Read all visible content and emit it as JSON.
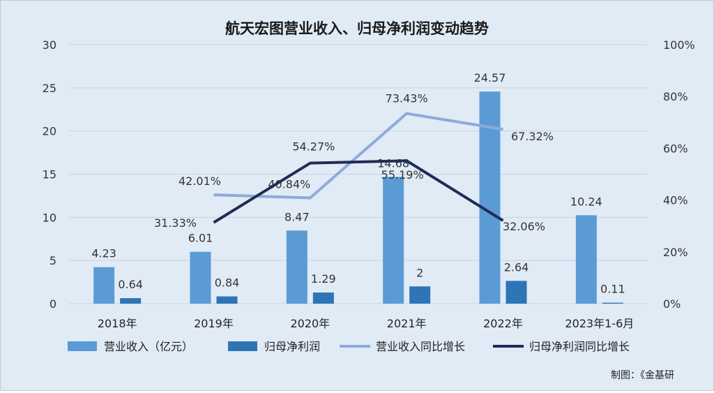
{
  "chart_data": {
    "type": "bar",
    "title": "航天宏图营业收入、归母净利润变动趋势",
    "categories": [
      "2018年",
      "2019年",
      "2020年",
      "2021年",
      "2022年",
      "2023年1-6月"
    ],
    "bar_series": [
      {
        "name": "营业收入（亿元）",
        "color": "#5b9bd5",
        "values": [
          4.23,
          6.01,
          8.47,
          14.68,
          24.57,
          10.24
        ]
      },
      {
        "name": "归母净利润",
        "color": "#2e75b6",
        "values": [
          0.64,
          0.84,
          1.29,
          2,
          2.64,
          0.11
        ]
      }
    ],
    "line_series": [
      {
        "name": "营业收入同比增长",
        "color": "#8eaadb",
        "points": [
          {
            "category": "2019年",
            "value": 42.01,
            "label": "42.01%"
          },
          {
            "category": "2020年",
            "value": 40.84,
            "label": "40.84%"
          },
          {
            "category": "2021年",
            "value": 73.43,
            "label": "73.43%"
          },
          {
            "category": "2022年",
            "value": 67.32,
            "label": "67.32%"
          }
        ]
      },
      {
        "name": "归母净利润同比增长",
        "color": "#1f2d55",
        "points": [
          {
            "category": "2019年",
            "value": 31.33,
            "label": "31.33%"
          },
          {
            "category": "2020年",
            "value": 54.27,
            "label": "54.27%"
          },
          {
            "category": "2021年",
            "value": 55.19,
            "label": "55.19%"
          },
          {
            "category": "2022年",
            "value": 32.06,
            "label": "32.06%"
          }
        ]
      }
    ],
    "y_left": {
      "min": 0,
      "max": 30,
      "ticks": [
        "0",
        "5",
        "10",
        "15",
        "20",
        "25",
        "30"
      ]
    },
    "y_right": {
      "min": 0,
      "max": 100,
      "ticks": [
        "0%",
        "20%",
        "40%",
        "60%",
        "80%",
        "100%"
      ]
    },
    "grid": true,
    "legend_position": "bottom"
  },
  "source": "制图：《金基研"
}
